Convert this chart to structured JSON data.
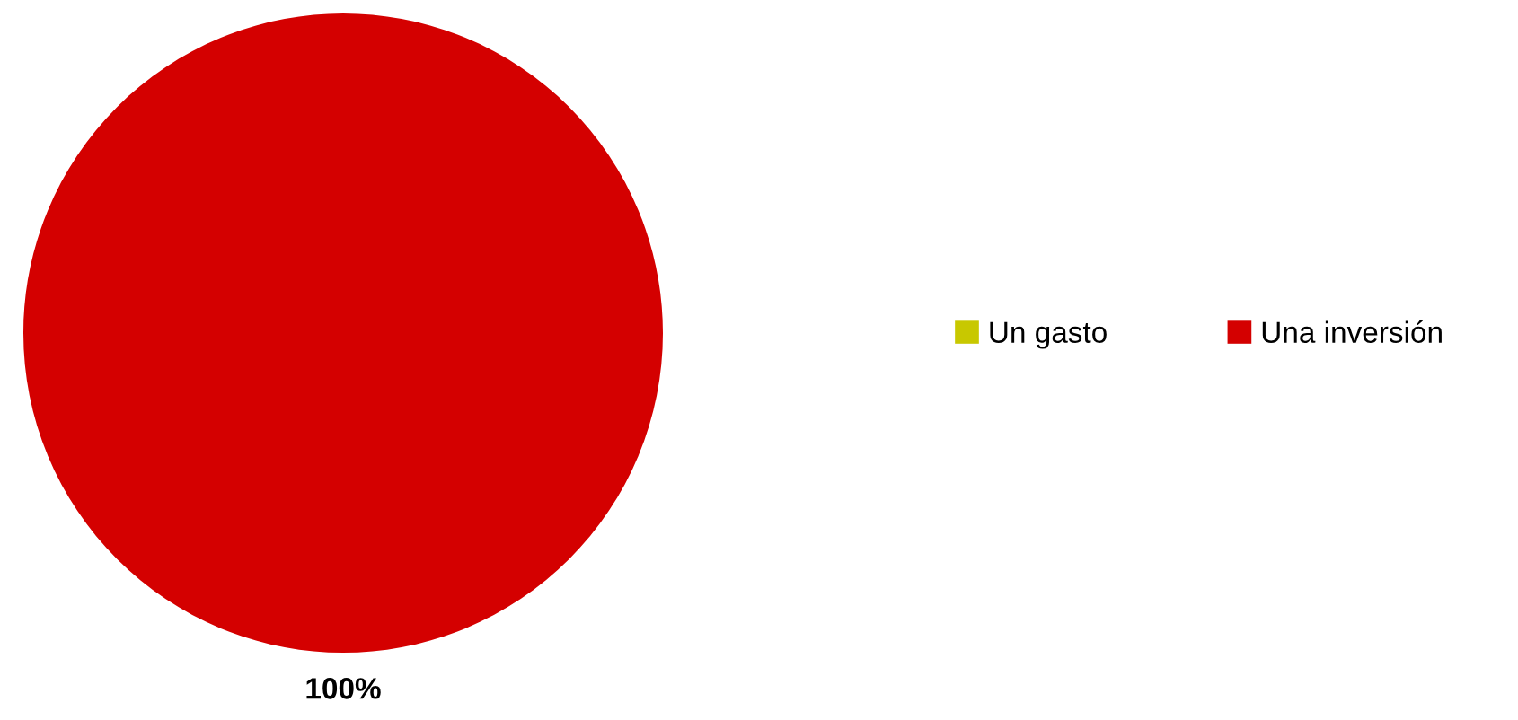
{
  "chart_data": {
    "type": "pie",
    "categories": [
      "Un gasto",
      "Una inversión"
    ],
    "values": [
      0,
      100
    ],
    "colors": [
      "#c8c800",
      "#d40000"
    ],
    "value_labels": [
      null,
      "100%"
    ],
    "legend": "right"
  }
}
